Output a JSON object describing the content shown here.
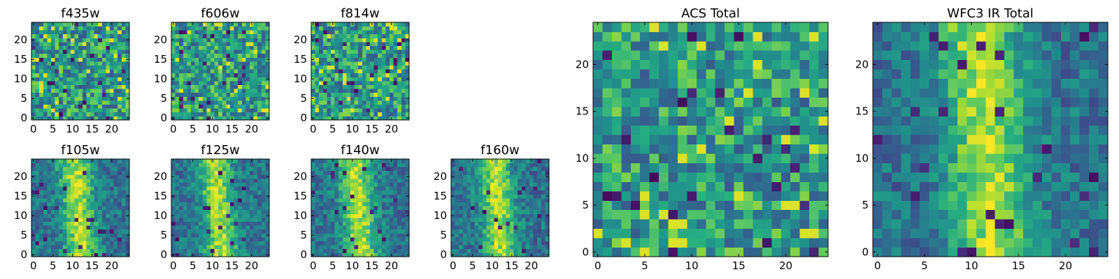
{
  "chart_data": [
    {
      "type": "heatmap",
      "title": "f435w",
      "xticks": [
        0,
        5,
        10,
        15,
        20
      ],
      "yticks": [
        0,
        5,
        10,
        15,
        20
      ],
      "xlim": [
        -0.5,
        24.5
      ],
      "ylim": [
        -0.5,
        24.5
      ],
      "grid_size": 25,
      "colormap": "viridis",
      "pattern": "noise"
    },
    {
      "type": "heatmap",
      "title": "f606w",
      "xticks": [
        0,
        5,
        10,
        15,
        20
      ],
      "yticks": [
        0,
        5,
        10,
        15,
        20
      ],
      "xlim": [
        -0.5,
        24.5
      ],
      "ylim": [
        -0.5,
        24.5
      ],
      "grid_size": 25,
      "colormap": "viridis",
      "pattern": "noise"
    },
    {
      "type": "heatmap",
      "title": "f814w",
      "xticks": [
        0,
        5,
        10,
        15,
        20
      ],
      "yticks": [
        0,
        5,
        10,
        15,
        20
      ],
      "xlim": [
        -0.5,
        24.5
      ],
      "ylim": [
        -0.5,
        24.5
      ],
      "grid_size": 25,
      "colormap": "viridis",
      "pattern": "noise"
    },
    {
      "type": "heatmap",
      "title": "f105w",
      "xticks": [
        0,
        5,
        10,
        15,
        20
      ],
      "yticks": [
        0,
        5,
        10,
        15,
        20
      ],
      "xlim": [
        -0.5,
        24.5
      ],
      "ylim": [
        -0.5,
        24.5
      ],
      "grid_size": 25,
      "colormap": "viridis",
      "pattern": "galaxy"
    },
    {
      "type": "heatmap",
      "title": "f125w",
      "xticks": [
        0,
        5,
        10,
        15,
        20
      ],
      "yticks": [
        0,
        5,
        10,
        15,
        20
      ],
      "xlim": [
        -0.5,
        24.5
      ],
      "ylim": [
        -0.5,
        24.5
      ],
      "grid_size": 25,
      "colormap": "viridis",
      "pattern": "galaxy"
    },
    {
      "type": "heatmap",
      "title": "f140w",
      "xticks": [
        0,
        5,
        10,
        15,
        20
      ],
      "yticks": [
        0,
        5,
        10,
        15,
        20
      ],
      "xlim": [
        -0.5,
        24.5
      ],
      "ylim": [
        -0.5,
        24.5
      ],
      "grid_size": 25,
      "colormap": "viridis",
      "pattern": "galaxy"
    },
    {
      "type": "heatmap",
      "title": "f160w",
      "xticks": [
        0,
        5,
        10,
        15,
        20
      ],
      "yticks": [
        0,
        5,
        10,
        15,
        20
      ],
      "xlim": [
        -0.5,
        24.5
      ],
      "ylim": [
        -0.5,
        24.5
      ],
      "grid_size": 25,
      "colormap": "viridis",
      "pattern": "galaxy"
    },
    {
      "type": "heatmap",
      "title": "ACS Total",
      "xticks": [
        0,
        5,
        10,
        15,
        20
      ],
      "yticks": [
        0,
        5,
        10,
        15,
        20
      ],
      "xlim": [
        -0.5,
        24.5
      ],
      "ylim": [
        -0.5,
        24.5
      ],
      "grid_size": 25,
      "colormap": "viridis",
      "pattern": "noise"
    },
    {
      "type": "heatmap",
      "title": "WFC3 IR Total",
      "xticks": [
        0,
        5,
        10,
        15,
        20
      ],
      "yticks": [
        0,
        5,
        10,
        15,
        20
      ],
      "xlim": [
        -0.5,
        24.5
      ],
      "ylim": [
        -0.5,
        24.5
      ],
      "grid_size": 25,
      "colormap": "viridis",
      "pattern": "galaxy"
    }
  ]
}
